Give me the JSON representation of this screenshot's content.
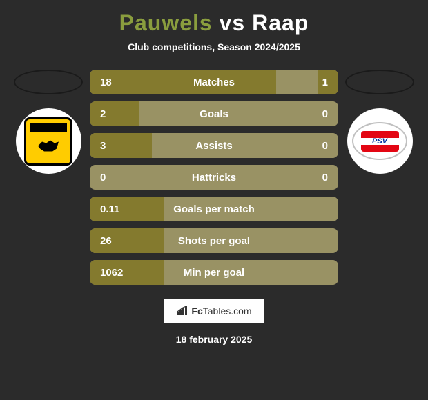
{
  "title": {
    "player1": "Pauwels",
    "vs": "vs",
    "player2": "Raap",
    "player1_color": "#8a9d3e",
    "vs_color": "#ffffff",
    "player2_color": "#ffffff"
  },
  "subtitle": "Club competitions, Season 2024/2025",
  "clubs": {
    "left": "CAMBUUR",
    "right": "PSV"
  },
  "stats": [
    {
      "label": "Matches",
      "left_value": "18",
      "right_value": "1",
      "left_fill_pct": 75,
      "right_fill_pct": 8
    },
    {
      "label": "Goals",
      "left_value": "2",
      "right_value": "0",
      "left_fill_pct": 20,
      "right_fill_pct": 0
    },
    {
      "label": "Assists",
      "left_value": "3",
      "right_value": "0",
      "left_fill_pct": 25,
      "right_fill_pct": 0
    },
    {
      "label": "Hattricks",
      "left_value": "0",
      "right_value": "0",
      "left_fill_pct": 0,
      "right_fill_pct": 0
    },
    {
      "label": "Goals per match",
      "left_value": "0.11",
      "right_value": "",
      "left_fill_pct": 30,
      "right_fill_pct": 0
    },
    {
      "label": "Shots per goal",
      "left_value": "26",
      "right_value": "",
      "left_fill_pct": 30,
      "right_fill_pct": 0
    },
    {
      "label": "Min per goal",
      "left_value": "1062",
      "right_value": "",
      "left_fill_pct": 30,
      "right_fill_pct": 0
    }
  ],
  "colors": {
    "background": "#2b2b2b",
    "bar_bg": "#999264",
    "bar_fill": "#847a2e",
    "text": "#ffffff"
  },
  "footer": {
    "brand_fc": "Fc",
    "brand_tables": "Tables.com"
  },
  "date": "18 february 2025"
}
